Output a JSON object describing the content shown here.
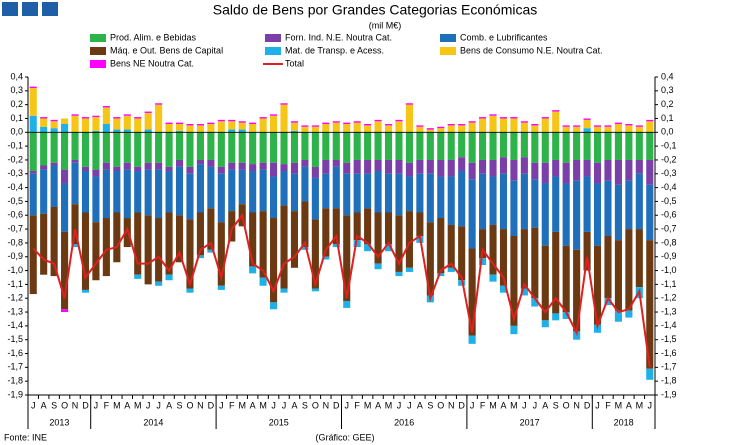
{
  "chart_data": {
    "type": "bar",
    "stacked": true,
    "title": "Saldo de Bens por Grandes Categorias Económicas",
    "subtitle": "(mil M€)",
    "source": "Fonte: INE",
    "credit": "(Gráfico: GEE)",
    "categories": [
      "J",
      "A",
      "S",
      "O",
      "N",
      "D",
      "J",
      "F",
      "M",
      "A",
      "M",
      "J",
      "J",
      "A",
      "S",
      "O",
      "N",
      "D",
      "J",
      "F",
      "M",
      "A",
      "M",
      "J",
      "J",
      "A",
      "S",
      "O",
      "N",
      "D",
      "J",
      "F",
      "M",
      "A",
      "M",
      "J",
      "J",
      "A",
      "S",
      "O",
      "N",
      "D",
      "J",
      "F",
      "M",
      "A",
      "M",
      "J",
      "J",
      "A",
      "S",
      "O",
      "N",
      "D",
      "J",
      "F",
      "M",
      "A",
      "M",
      "J"
    ],
    "years": [
      "2013",
      "2014",
      "2015",
      "2016",
      "2017",
      "2018"
    ],
    "ylim": [
      -1.9,
      0.4
    ],
    "yticks": [
      {
        "value": 0.4,
        "label": "0,4"
      },
      {
        "value": 0.3,
        "label": "0,3"
      },
      {
        "value": 0.2,
        "label": "0,2"
      },
      {
        "value": 0.1,
        "label": "0,1"
      },
      {
        "value": 0,
        "label": "0,0"
      },
      {
        "value": -0.1,
        "label": "-0,1"
      },
      {
        "value": -0.2,
        "label": "-0,2"
      },
      {
        "value": -0.3,
        "label": "-0,3"
      },
      {
        "value": -0.4,
        "label": "-0,4"
      },
      {
        "value": -0.5,
        "label": "-0,5"
      },
      {
        "value": -0.6,
        "label": "-0,6"
      },
      {
        "value": -0.7,
        "label": "-0,7"
      },
      {
        "value": -0.8,
        "label": "-0,8"
      },
      {
        "value": -0.9,
        "label": "-0,9"
      },
      {
        "value": -1,
        "label": "-1,0"
      },
      {
        "value": -1.1,
        "label": "-1,1"
      },
      {
        "value": -1.2,
        "label": "-1,2"
      },
      {
        "value": -1.3,
        "label": "-1,3"
      },
      {
        "value": -1.4,
        "label": "-1,4"
      },
      {
        "value": -1.5,
        "label": "-1,5"
      },
      {
        "value": -1.6,
        "label": "-1,6"
      },
      {
        "value": -1.7,
        "label": "-1,7"
      },
      {
        "value": -1.8,
        "label": "-1,8"
      },
      {
        "value": -1.9,
        "label": "-1,9"
      }
    ],
    "grid": false,
    "series": [
      {
        "name": "Prod. Alim. e Bebidas",
        "color": "#2db34a",
        "values": [
          -0.28,
          -0.24,
          -0.22,
          -0.27,
          -0.2,
          -0.25,
          -0.27,
          -0.22,
          -0.25,
          -0.22,
          -0.25,
          -0.22,
          -0.22,
          -0.25,
          -0.2,
          -0.25,
          -0.2,
          -0.2,
          -0.25,
          -0.22,
          -0.22,
          -0.23,
          -0.22,
          -0.22,
          -0.23,
          -0.22,
          -0.2,
          -0.25,
          -0.2,
          -0.2,
          -0.22,
          -0.2,
          -0.2,
          -0.2,
          -0.2,
          -0.2,
          -0.22,
          -0.2,
          -0.2,
          -0.2,
          -0.2,
          -0.18,
          -0.22,
          -0.2,
          -0.2,
          -0.18,
          -0.2,
          -0.18,
          -0.22,
          -0.22,
          -0.2,
          -0.22,
          -0.2,
          -0.2,
          -0.22,
          -0.2,
          -0.2,
          -0.2,
          -0.2,
          -0.2
        ]
      },
      {
        "name": "Forn. Ind. N.E. Noutra Cat.",
        "color": "#7b3fa8",
        "values": [
          -0.02,
          -0.03,
          -0.02,
          -0.1,
          -0.02,
          -0.03,
          -0.05,
          -0.05,
          -0.03,
          -0.05,
          -0.03,
          -0.05,
          -0.05,
          -0.03,
          -0.05,
          -0.05,
          -0.03,
          -0.05,
          -0.05,
          -0.05,
          -0.05,
          -0.05,
          -0.05,
          -0.1,
          -0.05,
          -0.08,
          -0.05,
          -0.08,
          -0.1,
          -0.05,
          -0.08,
          -0.1,
          -0.1,
          -0.08,
          -0.1,
          -0.1,
          -0.1,
          -0.1,
          -0.1,
          -0.12,
          -0.12,
          -0.1,
          -0.12,
          -0.1,
          -0.12,
          -0.12,
          -0.15,
          -0.12,
          -0.12,
          -0.15,
          -0.12,
          -0.15,
          -0.15,
          -0.12,
          -0.15,
          -0.15,
          -0.18,
          -0.15,
          -0.1,
          -0.18
        ]
      },
      {
        "name": "Comb. e Lubrificantes",
        "color": "#1f6fba",
        "values": [
          -0.3,
          -0.32,
          -0.3,
          -0.35,
          -0.3,
          -0.3,
          -0.33,
          -0.35,
          -0.3,
          -0.35,
          -0.3,
          -0.33,
          -0.35,
          -0.3,
          -0.35,
          -0.33,
          -0.35,
          -0.3,
          -0.35,
          -0.3,
          -0.25,
          -0.3,
          -0.3,
          -0.3,
          -0.25,
          -0.27,
          -0.25,
          -0.3,
          -0.25,
          -0.3,
          -0.3,
          -0.28,
          -0.25,
          -0.3,
          -0.28,
          -0.3,
          -0.25,
          -0.28,
          -0.35,
          -0.3,
          -0.35,
          -0.4,
          -0.5,
          -0.4,
          -0.35,
          -0.4,
          -0.4,
          -0.4,
          -0.35,
          -0.45,
          -0.4,
          -0.45,
          -0.5,
          -0.4,
          -0.45,
          -0.4,
          -0.4,
          -0.35,
          -0.4,
          -0.4
        ]
      },
      {
        "name": "Máq. e Out. Bens de Capital",
        "color": "#6b3a12",
        "values": [
          -0.57,
          -0.44,
          -0.5,
          -0.56,
          -0.29,
          -0.56,
          -0.42,
          -0.42,
          -0.36,
          -0.21,
          -0.45,
          -0.5,
          -0.46,
          -0.45,
          -0.34,
          -0.5,
          -0.31,
          -0.3,
          -0.46,
          -0.22,
          -0.16,
          -0.39,
          -0.48,
          -0.61,
          -0.6,
          -0.41,
          -0.33,
          -0.5,
          -0.35,
          -0.26,
          -0.62,
          -0.2,
          -0.26,
          -0.37,
          -0.23,
          -0.41,
          -0.41,
          -0.17,
          -0.53,
          -0.4,
          -0.31,
          -0.39,
          -0.63,
          -0.21,
          -0.36,
          -0.41,
          -0.65,
          -0.43,
          -0.51,
          -0.54,
          -0.59,
          -0.48,
          -0.59,
          -0.28,
          -0.57,
          -0.45,
          -0.51,
          -0.59,
          -0.42,
          -0.93
        ]
      },
      {
        "name": "Mat. de Transp. e Acess.",
        "color": "#1fb0e8",
        "values": [
          0.12,
          0.04,
          0.03,
          0.06,
          -0.02,
          -0.02,
          0.01,
          0.06,
          0.02,
          0.02,
          -0.03,
          0.02,
          -0.03,
          -0.04,
          0.01,
          -0.03,
          -0.02,
          -0.02,
          -0.03,
          0.02,
          0.02,
          -0.05,
          -0.06,
          -0.05,
          -0.03,
          0.01,
          -0.02,
          -0.02,
          -0.02,
          -0.02,
          -0.05,
          -0.05,
          -0.05,
          -0.04,
          -0.05,
          -0.03,
          -0.03,
          -0.05,
          -0.05,
          -0.02,
          -0.03,
          -0.04,
          -0.06,
          -0.05,
          -0.05,
          -0.05,
          -0.06,
          -0.05,
          -0.06,
          -0.05,
          -0.05,
          -0.05,
          -0.06,
          0.03,
          -0.06,
          -0.05,
          -0.08,
          -0.05,
          -0.08,
          -0.08
        ]
      },
      {
        "name": "Bens de Consumo N.E. Noutra Cat.",
        "color": "#f5c518",
        "values": [
          0.2,
          0.06,
          0.05,
          0.04,
          0.12,
          0.1,
          0.1,
          0.12,
          0.08,
          0.1,
          0.1,
          0.12,
          0.2,
          0.06,
          0.05,
          0.05,
          0.05,
          0.06,
          0.08,
          0.06,
          0.05,
          0.06,
          0.1,
          0.12,
          0.2,
          0.06,
          0.04,
          0.04,
          0.06,
          0.07,
          0.06,
          0.07,
          0.05,
          0.08,
          0.05,
          0.08,
          0.2,
          0.04,
          0.02,
          0.03,
          0.05,
          0.05,
          0.07,
          0.1,
          0.12,
          0.1,
          0.1,
          0.07,
          0.05,
          0.1,
          0.15,
          0.04,
          0.04,
          0.06,
          0.04,
          0.04,
          0.06,
          0.05,
          0.04,
          0.08
        ]
      },
      {
        "name": "Bens NE Noutra Cat.",
        "color": "#ff00ff",
        "values": [
          0.01,
          0.01,
          0.01,
          -0.02,
          0.01,
          0.01,
          0.01,
          0.01,
          0.01,
          0.01,
          0.01,
          0.01,
          0.01,
          0.01,
          0.01,
          0.01,
          0.01,
          0.01,
          0.01,
          0.01,
          0.01,
          0.01,
          0.01,
          0.01,
          0.01,
          0.01,
          0.01,
          0.01,
          0.01,
          0.01,
          0.01,
          0.01,
          0.01,
          0.01,
          0.01,
          0.01,
          0.01,
          0.01,
          0.01,
          0.01,
          0.01,
          0.01,
          0.01,
          0.01,
          0.01,
          0.01,
          0.01,
          0.01,
          0.01,
          0.01,
          0.01,
          0.01,
          0.01,
          0.01,
          0.01,
          0.01,
          0.01,
          0.01,
          0.01,
          0.01
        ]
      },
      {
        "name": "Total",
        "color": "#e02020",
        "type": "line",
        "values": [
          -0.84,
          -0.92,
          -0.95,
          -1.2,
          -0.7,
          -1.05,
          -0.95,
          -0.85,
          -0.83,
          -0.7,
          -0.95,
          -0.95,
          -0.9,
          -1.0,
          -0.87,
          -1.1,
          -0.85,
          -0.8,
          -1.05,
          -0.7,
          -0.6,
          -0.95,
          -1.0,
          -1.15,
          -0.95,
          -0.9,
          -0.8,
          -1.1,
          -0.85,
          -0.75,
          -1.2,
          -0.75,
          -0.8,
          -0.9,
          -0.8,
          -0.95,
          -0.8,
          -0.75,
          -1.2,
          -1.0,
          -0.95,
          -1.05,
          -1.45,
          -0.85,
          -0.95,
          -1.05,
          -1.35,
          -1.1,
          -1.2,
          -1.3,
          -1.2,
          -1.3,
          -1.45,
          -0.9,
          -1.4,
          -1.2,
          -1.3,
          -1.28,
          -1.15,
          -1.7
        ]
      }
    ]
  }
}
